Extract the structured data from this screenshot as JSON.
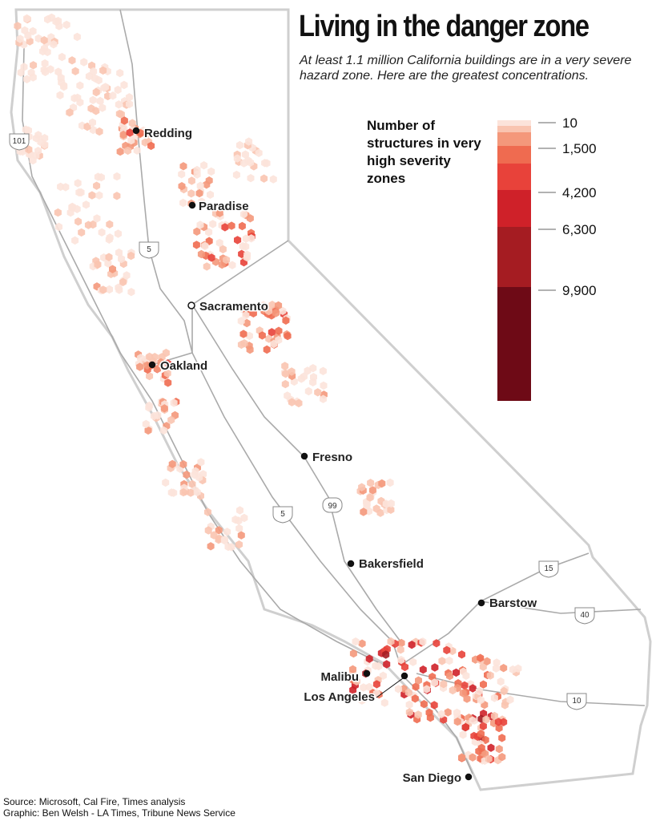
{
  "header": {
    "title": "Living in the danger zone",
    "subtitle": "At least 1.1 million California buildings are in a very severe hazard zone. Here are the greatest concentrations."
  },
  "legend": {
    "title": "Number of structures in very high severity zones",
    "colors": [
      "#fce3da",
      "#f9c4b0",
      "#f4987b",
      "#ef6b50",
      "#e8423a",
      "#cf2129",
      "#a51c22",
      "#6e0a16"
    ],
    "ticks": [
      10,
      {
        "value": 1500,
        "label": "1,500"
      },
      {
        "value": 4200,
        "label": "4,200"
      },
      {
        "value": 6300,
        "label": "6,300"
      },
      {
        "value": 9900,
        "label": "9,900"
      }
    ]
  },
  "cities": [
    "Redding",
    "Paradise",
    "Sacramento",
    "Oakland",
    "Fresno",
    "Bakersfield",
    "Barstow",
    "Malibu",
    "Los Angeles",
    "San Diego"
  ],
  "highways": [
    "101",
    "5",
    "5",
    "99",
    "15",
    "40",
    "10"
  ],
  "source": [
    "Source: Microsoft, Cal Fire, Times analysis",
    "Graphic: Ben Welsh - LA Times, Tribune News Service"
  ]
}
